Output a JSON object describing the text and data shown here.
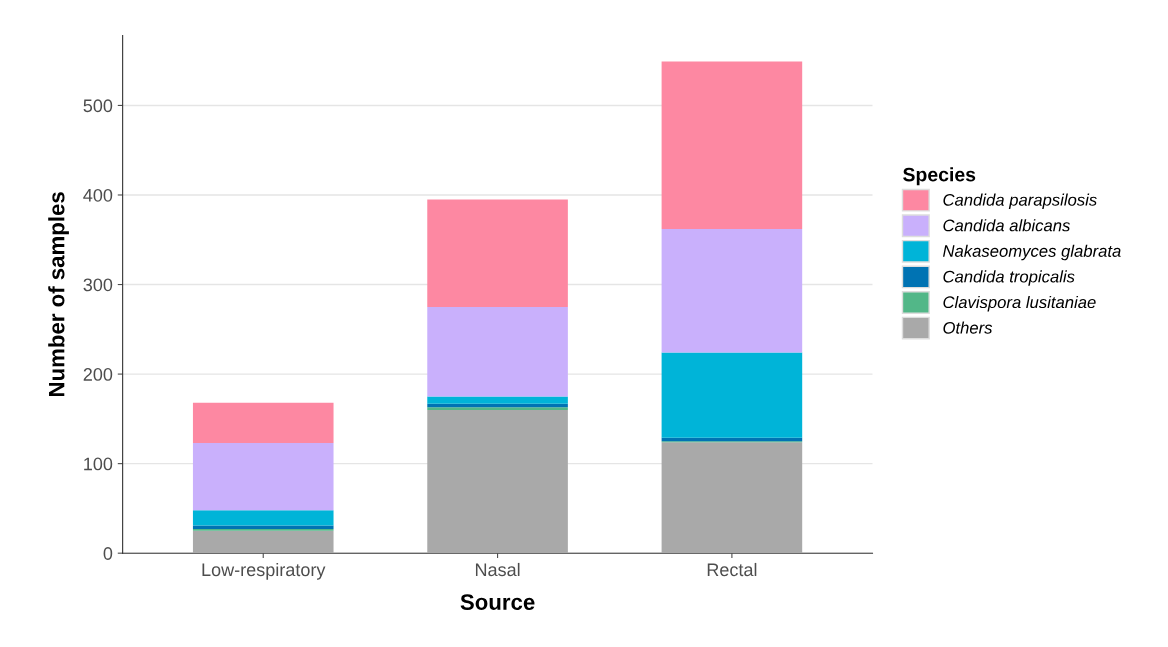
{
  "chart_data": {
    "type": "bar",
    "stacked": true,
    "xlabel": "Source",
    "ylabel": "Number of samples",
    "legend_title": "Species",
    "categories": [
      "Low-respiratory",
      "Nasal",
      "Rectal"
    ],
    "series": [
      {
        "name": "Others",
        "color": "#a9a9a9",
        "values": [
          25,
          160,
          124
        ]
      },
      {
        "name": "Clavispora lusitaniae",
        "color": "#52b788",
        "values": [
          2,
          3,
          1
        ]
      },
      {
        "name": "Candida tropicalis",
        "color": "#0073b3",
        "values": [
          4,
          4,
          4
        ]
      },
      {
        "name": "Nakaseomyces glabrata",
        "color": "#00b4d8",
        "values": [
          17,
          8,
          95
        ]
      },
      {
        "name": "Candida albicans",
        "color": "#c9b0fc",
        "values": [
          75,
          100,
          138
        ]
      },
      {
        "name": "Candida parapsilosis",
        "color": "#fd88a2",
        "values": [
          45,
          120,
          187
        ]
      }
    ],
    "ylim": [
      0,
      578
    ],
    "yticks": [
      0,
      100,
      200,
      300,
      400,
      500
    ],
    "grid": "y",
    "legend": "right"
  }
}
